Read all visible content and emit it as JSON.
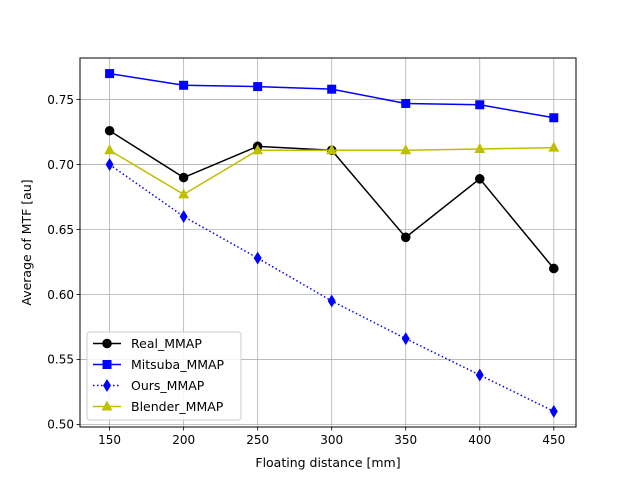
{
  "chart_data": {
    "type": "line",
    "title": "",
    "xlabel": "Floating distance [mm]",
    "ylabel": "Average of MTF [au]",
    "x": [
      150,
      200,
      250,
      300,
      350,
      400,
      450
    ],
    "xticks": [
      "150",
      "200",
      "250",
      "300",
      "350",
      "400",
      "450"
    ],
    "yticks": [
      "0.50",
      "0.55",
      "0.60",
      "0.65",
      "0.70",
      "0.75"
    ],
    "xlim": [
      130,
      465
    ],
    "ylim": [
      0.498,
      0.782
    ],
    "grid": true,
    "legend_position": "lower-left",
    "series": [
      {
        "name": "Real_MMAP",
        "color": "#000000",
        "marker": "circle",
        "line": "solid",
        "values": [
          0.726,
          0.69,
          0.714,
          0.711,
          0.644,
          0.689,
          0.62
        ]
      },
      {
        "name": "Mitsuba_MMAP",
        "color": "#0000ff",
        "marker": "square",
        "line": "solid",
        "values": [
          0.77,
          0.761,
          0.76,
          0.758,
          0.747,
          0.746,
          0.736
        ]
      },
      {
        "name": "Ours_MMAP",
        "color": "#0000ff",
        "marker": "thin-diamond",
        "line": "dotted",
        "values": [
          0.7,
          0.66,
          0.628,
          0.595,
          0.566,
          0.538,
          0.51
        ]
      },
      {
        "name": "Blender_MMAP",
        "color": "#bfbf00",
        "marker": "triangle",
        "line": "solid",
        "values": [
          0.711,
          0.677,
          0.711,
          0.711,
          0.711,
          0.712,
          0.713
        ]
      }
    ]
  }
}
